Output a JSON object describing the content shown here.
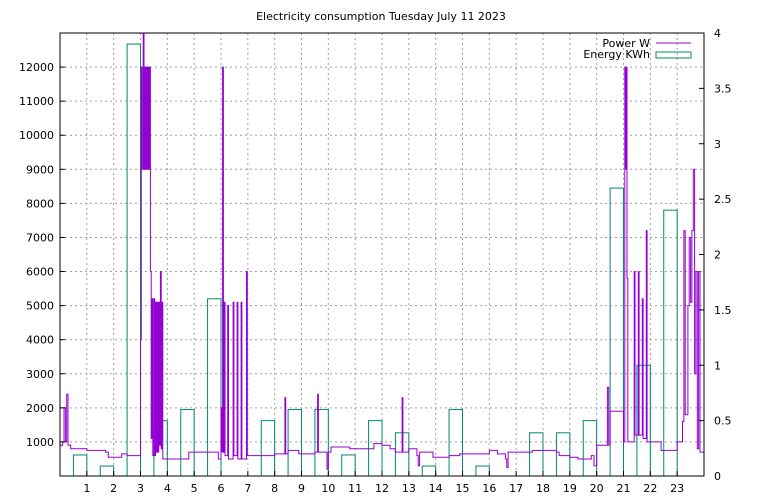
{
  "chart_data": {
    "type": "bar",
    "title": "Electricity consumption Tuesday July 11 2023",
    "xlabel": "",
    "ylabel": "",
    "x_ticks": [
      1,
      2,
      3,
      4,
      5,
      6,
      7,
      8,
      9,
      10,
      11,
      12,
      13,
      14,
      15,
      16,
      17,
      18,
      19,
      20,
      21,
      22,
      23
    ],
    "xlim": [
      0,
      24
    ],
    "y_left": {
      "lim": [
        0,
        13000
      ],
      "ticks": [
        1000,
        2000,
        3000,
        4000,
        5000,
        6000,
        7000,
        8000,
        9000,
        10000,
        11000,
        12000
      ]
    },
    "y_right": {
      "lim": [
        0,
        4
      ],
      "ticks": [
        0,
        0.5,
        1,
        1.5,
        2,
        2.5,
        3,
        3.5,
        4
      ]
    },
    "grid": true,
    "legend_position": "top-right",
    "series": [
      {
        "name": "Energy KWh",
        "axis": "right",
        "style": "boxes",
        "color": "#00896e",
        "box_width": 0.5,
        "x": [
          0.75,
          1.75,
          2.75,
          3.75,
          4.75,
          5.75,
          6.75,
          7.75,
          8.75,
          9.75,
          10.75,
          11.75,
          12.75,
          13.75,
          14.75,
          15.75,
          16.75,
          17.75,
          18.75,
          19.75,
          20.75,
          21.75,
          22.75
        ],
        "values": [
          0.19,
          0.09,
          3.9,
          0.5,
          0.6,
          1.6,
          0,
          0.5,
          0.6,
          0.6,
          0.19,
          0.5,
          0.39,
          0.09,
          0.6,
          0.09,
          0,
          0.39,
          0.39,
          0.5,
          2.6,
          1.0,
          2.4
        ]
      },
      {
        "name": "Power W",
        "axis": "left",
        "style": "line",
        "color": "#9400d3",
        "points": [
          [
            0,
            900
          ],
          [
            0.1,
            1000
          ],
          [
            0.15,
            2000
          ],
          [
            0.2,
            1000
          ],
          [
            0.25,
            2400
          ],
          [
            0.3,
            900
          ],
          [
            0.4,
            800
          ],
          [
            1.0,
            750
          ],
          [
            1.7,
            700
          ],
          [
            1.8,
            550
          ],
          [
            2.2,
            550
          ],
          [
            2.3,
            650
          ],
          [
            2.5,
            600
          ],
          [
            2.9,
            600
          ],
          [
            3.0,
            4000
          ],
          [
            3.03,
            12000
          ],
          [
            3.06,
            9000
          ],
          [
            3.1,
            13000
          ],
          [
            3.13,
            9000
          ],
          [
            3.16,
            12000
          ],
          [
            3.19,
            9000
          ],
          [
            3.22,
            12000
          ],
          [
            3.25,
            9000
          ],
          [
            3.28,
            12000
          ],
          [
            3.31,
            9000
          ],
          [
            3.34,
            12000
          ],
          [
            3.37,
            6000
          ],
          [
            3.4,
            1100
          ],
          [
            3.43,
            5200
          ],
          [
            3.46,
            600
          ],
          [
            3.5,
            5200
          ],
          [
            3.53,
            600
          ],
          [
            3.56,
            5100
          ],
          [
            3.59,
            700
          ],
          [
            3.62,
            5100
          ],
          [
            3.65,
            700
          ],
          [
            3.68,
            5100
          ],
          [
            3.71,
            900
          ],
          [
            3.74,
            6000
          ],
          [
            3.77,
            800
          ],
          [
            3.8,
            5100
          ],
          [
            3.83,
            500
          ],
          [
            4.5,
            500
          ],
          [
            4.8,
            700
          ],
          [
            5.6,
            700
          ],
          [
            5.9,
            500
          ],
          [
            6.0,
            2000
          ],
          [
            6.03,
            700
          ],
          [
            6.06,
            12000
          ],
          [
            6.09,
            700
          ],
          [
            6.12,
            5100
          ],
          [
            6.15,
            600
          ],
          [
            6.25,
            5000
          ],
          [
            6.28,
            500
          ],
          [
            6.45,
            5100
          ],
          [
            6.48,
            600
          ],
          [
            6.6,
            5100
          ],
          [
            6.63,
            500
          ],
          [
            6.75,
            5100
          ],
          [
            6.78,
            500
          ],
          [
            6.95,
            6000
          ],
          [
            6.98,
            600
          ],
          [
            7.6,
            600
          ],
          [
            8.0,
            650
          ],
          [
            8.35,
            650
          ],
          [
            8.38,
            2300
          ],
          [
            8.41,
            650
          ],
          [
            8.5,
            750
          ],
          [
            8.9,
            650
          ],
          [
            9.5,
            700
          ],
          [
            9.6,
            2400
          ],
          [
            9.63,
            700
          ],
          [
            9.8,
            700
          ],
          [
            9.95,
            200
          ],
          [
            10.0,
            700
          ],
          [
            10.1,
            850
          ],
          [
            10.8,
            800
          ],
          [
            11.3,
            800
          ],
          [
            11.6,
            800
          ],
          [
            11.7,
            950
          ],
          [
            12.0,
            900
          ],
          [
            12.3,
            800
          ],
          [
            12.5,
            700
          ],
          [
            12.75,
            2300
          ],
          [
            12.78,
            700
          ],
          [
            13.0,
            800
          ],
          [
            13.2,
            800
          ],
          [
            13.3,
            600
          ],
          [
            13.35,
            300
          ],
          [
            13.4,
            700
          ],
          [
            13.8,
            700
          ],
          [
            13.9,
            550
          ],
          [
            14.5,
            600
          ],
          [
            14.9,
            650
          ],
          [
            15.5,
            650
          ],
          [
            15.9,
            650
          ],
          [
            16.0,
            750
          ],
          [
            16.3,
            650
          ],
          [
            16.6,
            500
          ],
          [
            16.65,
            250
          ],
          [
            16.7,
            700
          ],
          [
            17.5,
            700
          ],
          [
            17.6,
            750
          ],
          [
            18.5,
            700
          ],
          [
            18.6,
            600
          ],
          [
            19.0,
            550
          ],
          [
            19.3,
            500
          ],
          [
            19.8,
            600
          ],
          [
            19.9,
            300
          ],
          [
            20.0,
            900
          ],
          [
            20.4,
            2600
          ],
          [
            20.45,
            900
          ],
          [
            20.5,
            1900
          ],
          [
            20.8,
            1900
          ],
          [
            21.0,
            1000
          ],
          [
            21.05,
            12000
          ],
          [
            21.08,
            9000
          ],
          [
            21.1,
            12000
          ],
          [
            21.13,
            5800
          ],
          [
            21.16,
            1000
          ],
          [
            21.4,
            6000
          ],
          [
            21.43,
            1200
          ],
          [
            21.55,
            6000
          ],
          [
            21.58,
            1200
          ],
          [
            21.7,
            5200
          ],
          [
            21.73,
            1100
          ],
          [
            21.85,
            7200
          ],
          [
            21.88,
            1000
          ],
          [
            22.0,
            1000
          ],
          [
            22.3,
            1000
          ],
          [
            22.4,
            750
          ],
          [
            22.8,
            750
          ],
          [
            23.0,
            1000
          ],
          [
            23.2,
            1600
          ],
          [
            23.25,
            7200
          ],
          [
            23.3,
            1800
          ],
          [
            23.4,
            5000
          ],
          [
            23.45,
            7000
          ],
          [
            23.5,
            5100
          ],
          [
            23.55,
            7200
          ],
          [
            23.6,
            9000
          ],
          [
            23.65,
            3000
          ],
          [
            23.7,
            6000
          ],
          [
            23.75,
            800
          ],
          [
            23.8,
            6000
          ],
          [
            23.85,
            700
          ],
          [
            24.0,
            700
          ]
        ]
      }
    ]
  }
}
